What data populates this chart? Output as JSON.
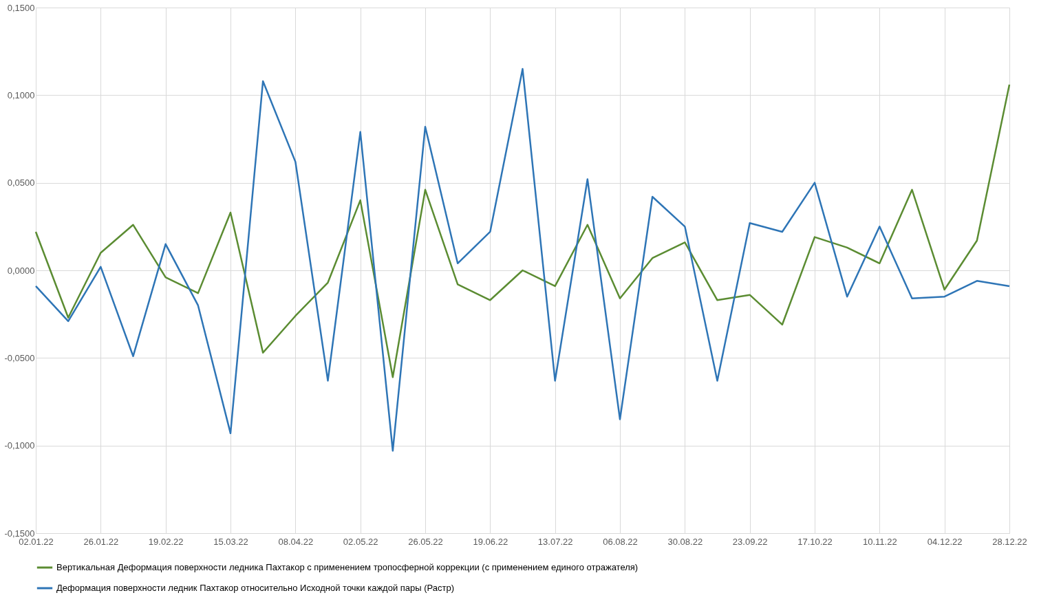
{
  "chart_data": {
    "type": "line",
    "categories": [
      "02.01.22",
      null,
      "26.01.22",
      null,
      "19.02.22",
      null,
      "15.03.22",
      null,
      "08.04.22",
      null,
      "02.05.22",
      null,
      "26.05.22",
      null,
      "19.06.22",
      null,
      "13.07.22",
      null,
      "06.08.22",
      null,
      "30.08.22",
      null,
      "23.09.22",
      null,
      "17.10.22",
      null,
      "10.11.22",
      null,
      "04.12.22",
      null,
      "28.12.22"
    ],
    "series": [
      {
        "name": "Вертикальная Деформация поверхности ледника Пахтакор с применением тропосферной коррекции  (с применением единого отражателя)",
        "color": "#5b8c32",
        "values": [
          0.022,
          -0.027,
          0.01,
          0.026,
          -0.004,
          -0.013,
          0.033,
          -0.047,
          -0.026,
          -0.007,
          0.04,
          -0.061,
          0.046,
          -0.008,
          -0.017,
          0.0,
          -0.009,
          0.026,
          -0.016,
          0.007,
          0.016,
          -0.017,
          -0.014,
          -0.031,
          0.019,
          0.013,
          0.004,
          0.046,
          -0.011,
          0.017,
          0.106
        ]
      },
      {
        "name": "Деформация поверхности  ледник Пахтакор  относительно  Исходной точки каждой пары (Растр)",
        "color": "#2e75b6",
        "values": [
          -0.009,
          -0.029,
          0.002,
          -0.049,
          0.015,
          -0.02,
          -0.093,
          0.108,
          0.062,
          -0.063,
          0.079,
          -0.103,
          0.082,
          0.004,
          0.022,
          0.115,
          -0.063,
          0.052,
          -0.085,
          0.042,
          0.025,
          -0.063,
          0.027,
          0.022,
          0.05,
          -0.015,
          0.025,
          -0.016,
          -0.015,
          -0.006,
          -0.009
        ]
      }
    ],
    "ylim": [
      -0.15,
      0.15
    ],
    "yticks": [
      {
        "value": -0.15,
        "label": "-0,1500"
      },
      {
        "value": -0.1,
        "label": "-0,1000"
      },
      {
        "value": -0.05,
        "label": "-0,0500"
      },
      {
        "value": 0,
        "label": "0,0000"
      },
      {
        "value": 0.05,
        "label": "0,0500"
      },
      {
        "value": 0.1,
        "label": "0,1000"
      },
      {
        "value": 0.15,
        "label": "0,1500"
      }
    ],
    "grid": true,
    "legend": "bottom"
  }
}
